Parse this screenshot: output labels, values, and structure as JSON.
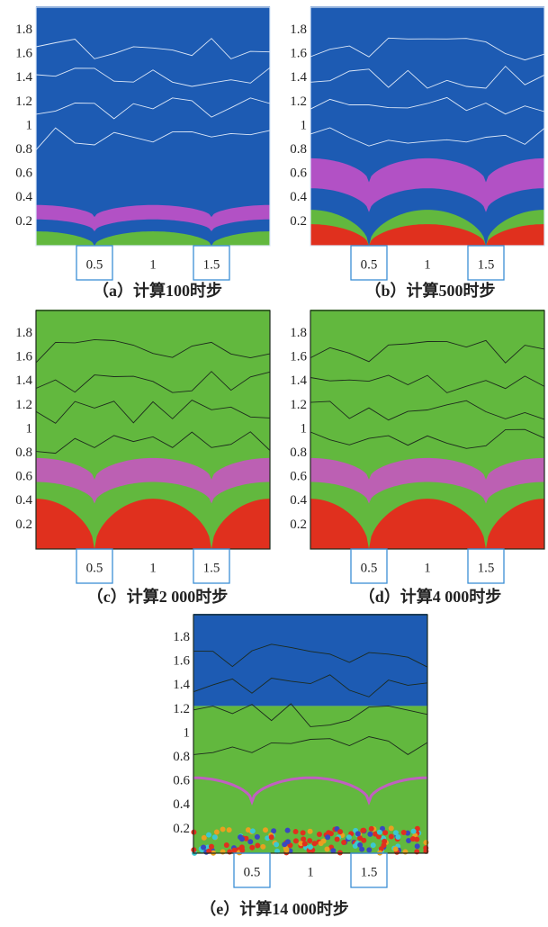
{
  "panels": [
    {
      "caption": "（a）计算100时步",
      "yticks": [
        1.8,
        1.6,
        1.4,
        1.2,
        1,
        0.8,
        0.6,
        0.4,
        0.2
      ],
      "xticks": [
        0.5,
        1,
        1.5
      ]
    },
    {
      "caption": "（b）计算500时步",
      "yticks": [
        1.8,
        1.6,
        1.4,
        1.2,
        1,
        0.8,
        0.6,
        0.4,
        0.2
      ],
      "xticks": [
        0.5,
        1,
        1.5
      ]
    },
    {
      "caption": "（c）计算2 000时步",
      "yticks": [
        1.8,
        1.6,
        1.4,
        1.2,
        1,
        0.8,
        0.6,
        0.4,
        0.2
      ],
      "xticks": [
        0.5,
        1,
        1.5
      ]
    },
    {
      "caption": "（d）计算4 000时步",
      "yticks": [
        1.8,
        1.6,
        1.4,
        1.2,
        1,
        0.8,
        0.6,
        0.4,
        0.2
      ],
      "xticks": [
        0.5,
        1,
        1.5
      ]
    },
    {
      "caption": "（e）计算14 000时步",
      "yticks": [
        1.8,
        1.6,
        1.4,
        1.2,
        1,
        0.8,
        0.6,
        0.4,
        0.2
      ],
      "xticks": [
        0.5,
        1,
        1.5
      ]
    }
  ]
}
